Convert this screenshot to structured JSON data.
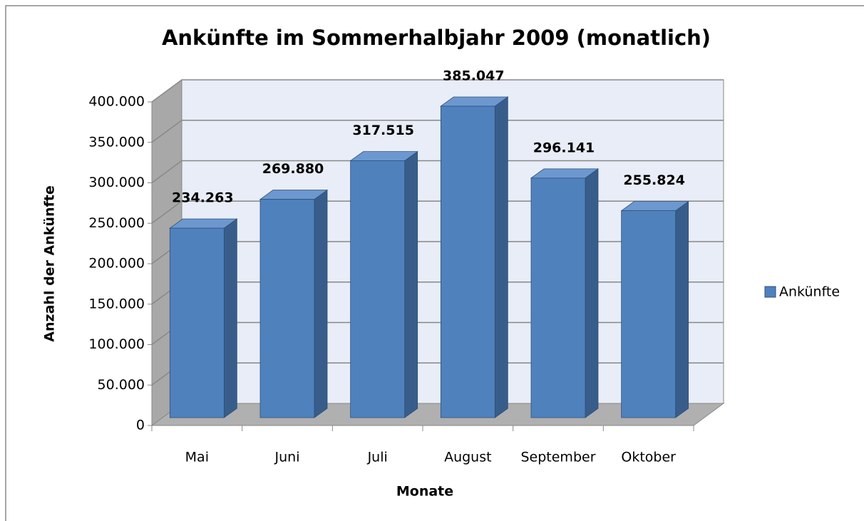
{
  "chart_data": {
    "type": "bar3d",
    "title": "Ankünfte im Sommerhalbjahr 2009 (monatlich)",
    "x_label": "Monate",
    "y_label": "Anzahl der Ankünfte",
    "categories": [
      "Mai",
      "Juni",
      "Juli",
      "August",
      "September",
      "Oktober"
    ],
    "series": [
      {
        "name": "Ankünfte",
        "color": "#4f81bd",
        "values": [
          234263,
          269880,
          317515,
          385047,
          296141,
          255824
        ],
        "value_labels": [
          "234.263",
          "269.880",
          "317.515",
          "385.047",
          "296.141",
          "255.824"
        ]
      }
    ],
    "ylim": [
      0,
      400000
    ],
    "yticks": [
      0,
      {
        "value": 50000,
        "label": "50.000"
      },
      {
        "value": 100000,
        "label": "100.000"
      },
      {
        "value": 150000,
        "label": "150.000"
      },
      {
        "value": 200000,
        "label": "200.000"
      },
      {
        "value": 250000,
        "label": "250.000"
      },
      {
        "value": 300000,
        "label": "300.000"
      },
      {
        "value": 350000,
        "label": "350.000"
      },
      {
        "value": 400000,
        "label": "400.000"
      }
    ],
    "grid": true,
    "legend": "right"
  }
}
